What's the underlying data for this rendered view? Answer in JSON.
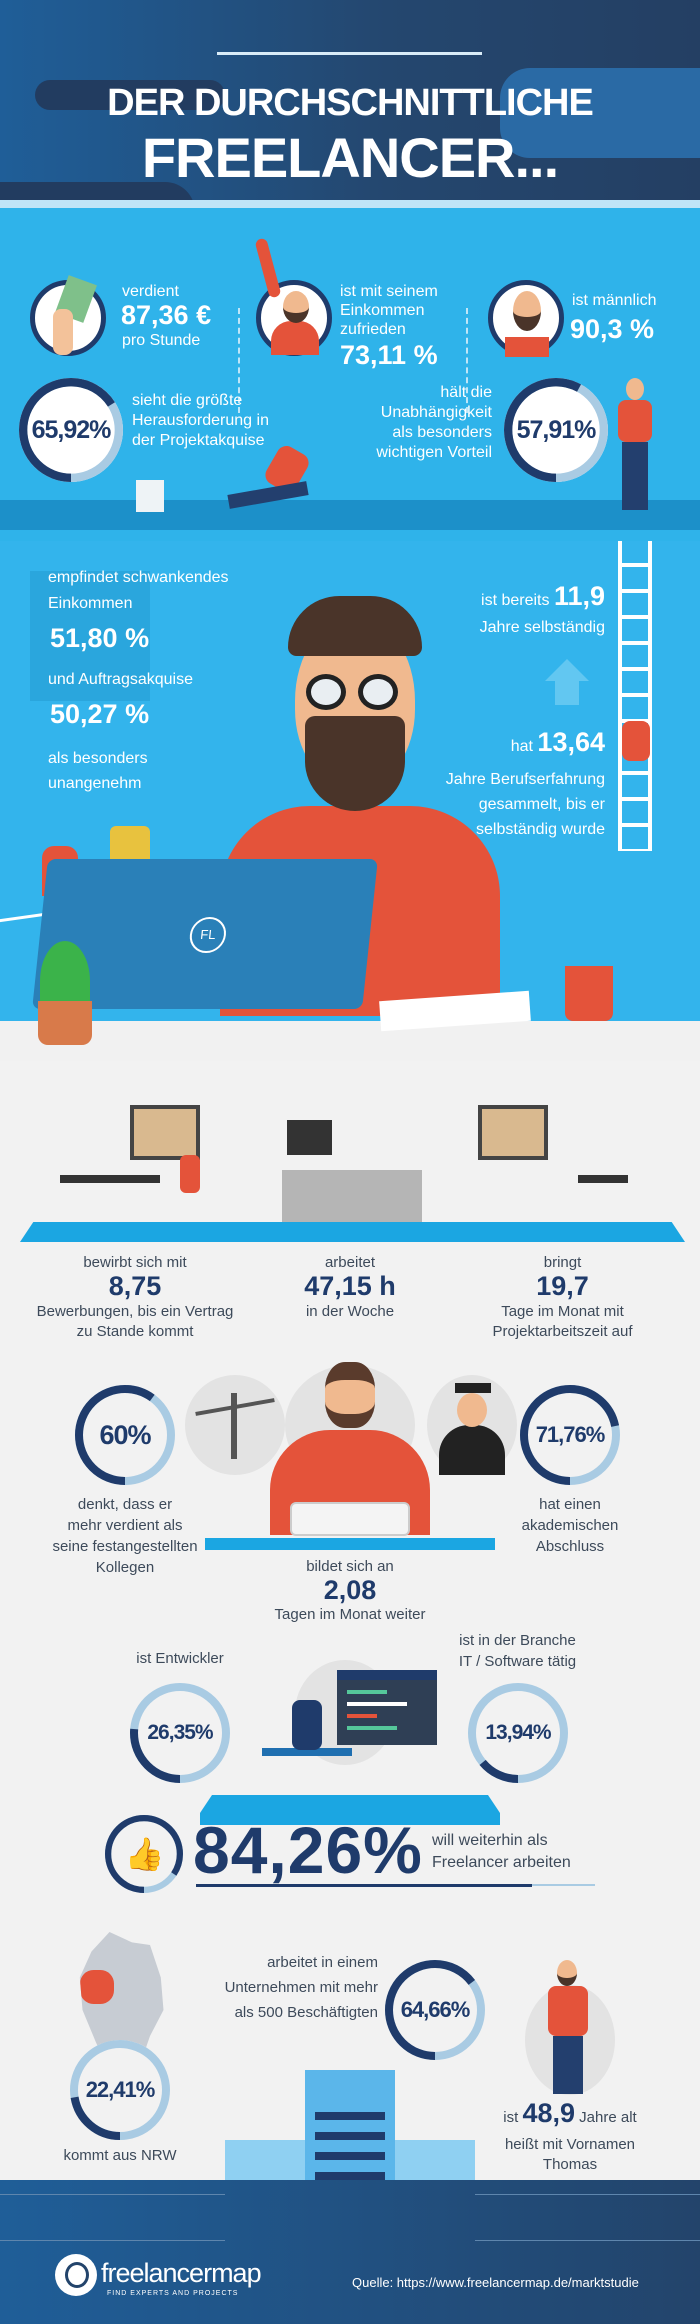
{
  "header": {
    "title_line1": "DER DURCHSCHNITTLICHE",
    "title_line2": "FREELANCER..."
  },
  "colors": {
    "navy": "#1f3b6b",
    "light_blue": "#2fb3ea",
    "ring_track": "#a9cbe3",
    "accent_red": "#e4533a",
    "background_gray": "#f2f2f2"
  },
  "row1": [
    {
      "pre": "verdient",
      "value": "87,36 €",
      "post": "pro Stunde",
      "icon": "money-hand-icon"
    },
    {
      "pre_lines": [
        "ist mit seinem",
        "Einkommen",
        "zufrieden"
      ],
      "value": "73,11 %",
      "icon": "cheering-man-icon"
    },
    {
      "pre": "ist männlich",
      "value": "90,3 %",
      "icon": "bearded-man-icon"
    }
  ],
  "row2": [
    {
      "value": "65,92%",
      "pct": 65.92,
      "lines": [
        "sieht die größte",
        "Herausforderung in",
        "der Projektakquise"
      ]
    },
    {
      "value": "57,91%",
      "pct": 57.91,
      "lines": [
        "hält die",
        "Unabhängigkeit",
        "als besonders",
        "wichtigen Vorteil"
      ]
    }
  ],
  "income": {
    "line1": "empfindet schwankendes",
    "line2": "Einkommen",
    "value1": "51,80 %",
    "mid": "und Auftragsakquise",
    "value2": "50,27 %",
    "line3": "als besonders",
    "line4": "unangenehm"
  },
  "years": {
    "pre": "ist bereits",
    "value": "11,9",
    "post": "Jahre selbständig"
  },
  "experience": {
    "pre": "hat",
    "value": "13,64",
    "lines": [
      "Jahre Berufserfahrung",
      "gesammelt, bis er",
      "selbständig wurde"
    ]
  },
  "laptop_logo": "FL",
  "work": [
    {
      "pre": "bewirbt sich mit",
      "value": "8,75",
      "lines": [
        "Bewerbungen, bis ein Vertrag",
        "zu Stande kommt"
      ]
    },
    {
      "pre": "arbeitet",
      "value": "47,15 h",
      "lines": [
        "in der Woche"
      ]
    },
    {
      "pre": "bringt",
      "value": "19,7",
      "lines": [
        "Tage im Monat mit",
        "Projektarbeitszeit auf"
      ]
    }
  ],
  "earns_more": {
    "value": "60%",
    "pct": 60,
    "lines": [
      "denkt, dass er",
      "mehr verdient als",
      "seine festangestellten",
      "Kollegen"
    ]
  },
  "training": {
    "pre": "bildet sich an",
    "value": "2,08",
    "post": "Tagen im Monat weiter"
  },
  "academic": {
    "value": "71,76%",
    "pct": 71.76,
    "lines": [
      "hat einen",
      "akademischen",
      "Abschluss"
    ]
  },
  "developer": {
    "label": "ist Entwickler",
    "value": "26,35%",
    "pct": 26.35
  },
  "it_branch": {
    "lines": [
      "ist in der Branche",
      "IT / Software tätig"
    ],
    "value": "13,94%",
    "pct": 13.94
  },
  "continue": {
    "value": "84,26%",
    "pct": 84.26,
    "lines": [
      "will weiterhin als",
      "Freelancer arbeiten"
    ]
  },
  "nrw": {
    "value": "22,41%",
    "pct": 22.41,
    "label": "kommt aus NRW"
  },
  "company": {
    "lines": [
      "arbeitet in einem",
      "Unternehmen mit mehr",
      "als 500 Beschäftigten"
    ],
    "value": "64,66%",
    "pct": 64.66
  },
  "age": {
    "pre": "ist",
    "value": "48,9",
    "post": "Jahre alt",
    "name_lines": [
      "heißt mit Vornamen",
      "Thomas"
    ]
  },
  "footer": {
    "logo_text": "freelancermap",
    "logo_tagline": "FIND EXPERTS AND PROJECTS",
    "source": "Quelle: https://www.freelancermap.de/marktstudie"
  }
}
